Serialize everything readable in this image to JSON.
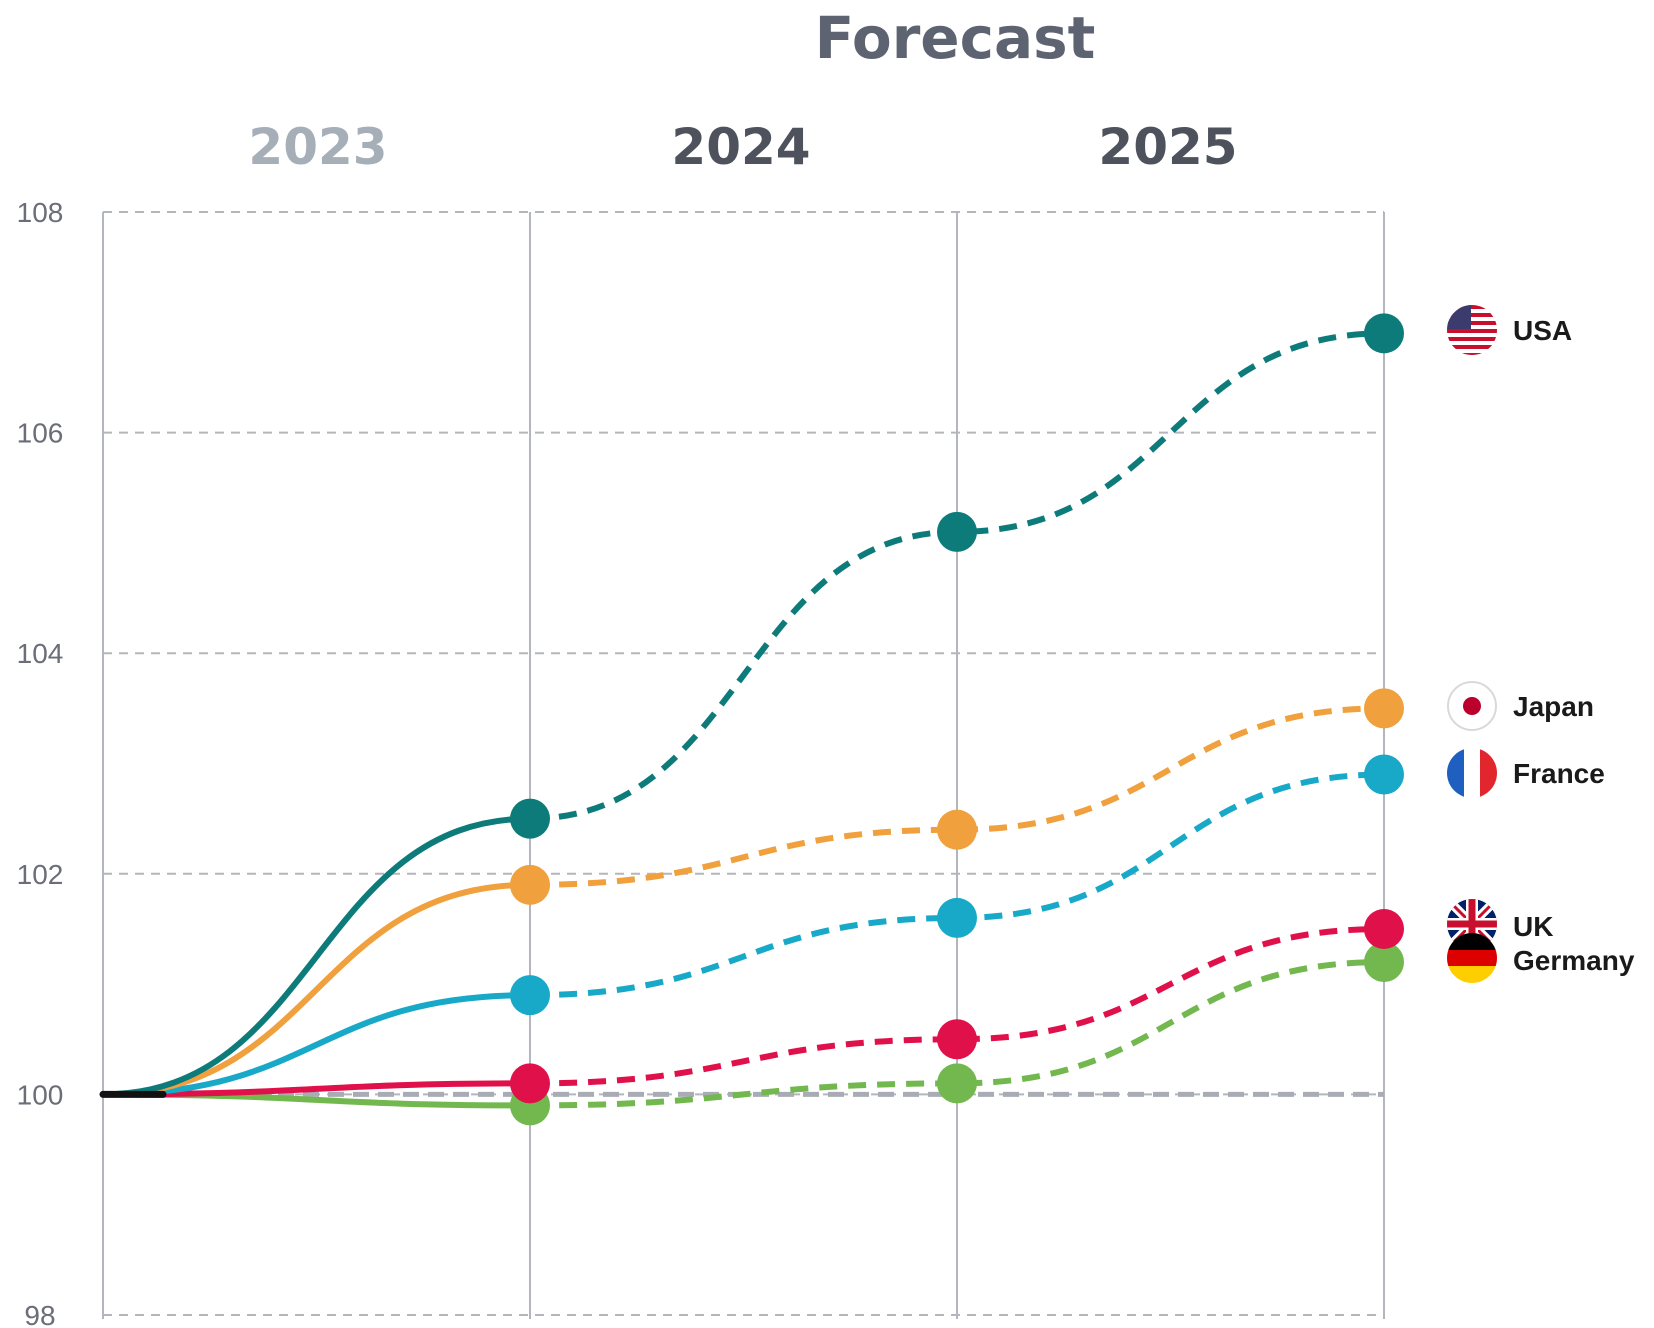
{
  "chart_data": {
    "type": "line",
    "forecast_label": "Forecast",
    "year_labels": [
      "2023",
      "2024",
      "2025"
    ],
    "x": [
      0,
      1,
      2,
      3
    ],
    "ylim": [
      98,
      108
    ],
    "yticks": [
      "108",
      "106",
      "104",
      "102",
      "100",
      "98"
    ],
    "grid": true,
    "baseline": 100,
    "series": [
      {
        "name": "USA",
        "values": [
          100,
          102.5,
          105.1,
          106.9
        ],
        "color": "#0e7b7b",
        "icon": "usa-flag-icon"
      },
      {
        "name": "Japan",
        "values": [
          100,
          101.9,
          102.4,
          103.5
        ],
        "color": "#f0a03c",
        "icon": "japan-flag-icon"
      },
      {
        "name": "France",
        "values": [
          100,
          100.9,
          101.6,
          102.9
        ],
        "color": "#18a8c8",
        "icon": "france-flag-icon"
      },
      {
        "name": "UK",
        "values": [
          100,
          100.1,
          100.5,
          101.5
        ],
        "color": "#e0104a",
        "icon": "uk-flag-icon"
      },
      {
        "name": "Germany",
        "values": [
          100,
          99.9,
          100.1,
          101.2
        ],
        "color": "#72b84e",
        "icon": "germany-flag-icon"
      }
    ]
  }
}
